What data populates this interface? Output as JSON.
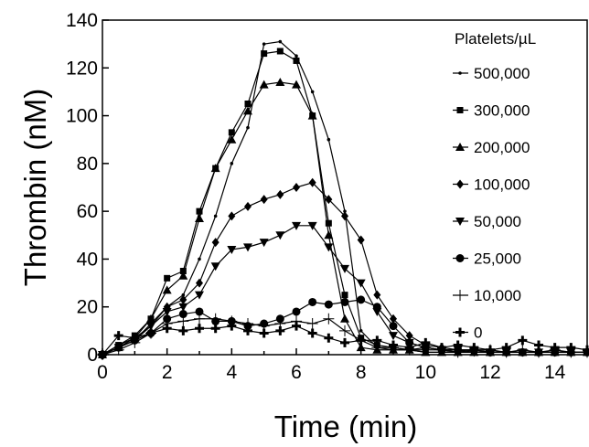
{
  "chart_data": {
    "type": "line",
    "title": "",
    "xlabel": "Time (min)",
    "ylabel": "Thrombin (nM)",
    "xlim": [
      0,
      15
    ],
    "ylim": [
      0,
      140
    ],
    "xticks": [
      "0",
      "2",
      "4",
      "6",
      "8",
      "10",
      "12",
      "14"
    ],
    "yticks": [
      "0",
      "20",
      "40",
      "60",
      "80",
      "100",
      "120",
      "140"
    ],
    "grid": false,
    "legend_title": "Platelets/µL",
    "legend_position": "top-right",
    "series": [
      {
        "name": "500,000",
        "marker": "dot",
        "x": [
          0,
          0.5,
          1,
          1.5,
          2,
          2.5,
          3,
          3.5,
          4,
          4.5,
          5,
          5.5,
          6,
          6.5,
          7,
          7.5,
          8,
          8.5,
          9,
          9.5,
          10,
          10.5,
          11,
          11.5,
          12,
          12.5,
          13,
          13.5,
          14,
          14.5,
          15
        ],
        "y": [
          0,
          4,
          7,
          12,
          20,
          25,
          40,
          58,
          80,
          95,
          130,
          131,
          125,
          110,
          90,
          60,
          10,
          3,
          2,
          2,
          1,
          1,
          1,
          1,
          1,
          1,
          1,
          1,
          1,
          1,
          1
        ]
      },
      {
        "name": "300,000",
        "marker": "square",
        "x": [
          0,
          0.5,
          1,
          1.5,
          2,
          2.5,
          3,
          3.5,
          4,
          4.5,
          5,
          5.5,
          6,
          6.5,
          7,
          7.5,
          8,
          8.5,
          9,
          9.5,
          10,
          10.5,
          11,
          11.5,
          12,
          12.5,
          13,
          13.5,
          14,
          14.5,
          15
        ],
        "y": [
          0,
          4,
          8,
          15,
          32,
          35,
          60,
          78,
          93,
          105,
          126,
          127,
          123,
          100,
          55,
          25,
          7,
          4,
          3,
          2,
          2,
          2,
          1,
          1,
          1,
          1,
          1,
          1,
          1,
          1,
          1
        ]
      },
      {
        "name": "200,000",
        "marker": "triangle-up",
        "x": [
          0,
          0.5,
          1,
          1.5,
          2,
          2.5,
          3,
          3.5,
          4,
          4.5,
          5,
          5.5,
          6,
          6.5,
          7,
          7.5,
          8,
          8.5,
          9,
          9.5,
          10,
          10.5,
          11,
          11.5,
          12,
          12.5,
          13,
          13.5,
          14,
          14.5,
          15
        ],
        "y": [
          0,
          3,
          7,
          15,
          27,
          33,
          57,
          78,
          90,
          102,
          113,
          114,
          113,
          100,
          50,
          15,
          3,
          2,
          2,
          2,
          1,
          1,
          1,
          1,
          1,
          1,
          1,
          1,
          1,
          1,
          1
        ]
      },
      {
        "name": "100,000",
        "marker": "diamond",
        "x": [
          0,
          0.5,
          1,
          1.5,
          2,
          2.5,
          3,
          3.5,
          4,
          4.5,
          5,
          5.5,
          6,
          6.5,
          7,
          7.5,
          8,
          8.5,
          9,
          9.5,
          10,
          10.5,
          11,
          11.5,
          12,
          12.5,
          13,
          13.5,
          14,
          14.5,
          15
        ],
        "y": [
          0,
          3,
          6,
          13,
          20,
          23,
          30,
          47,
          58,
          62,
          65,
          67,
          70,
          72,
          65,
          58,
          48,
          25,
          15,
          8,
          4,
          3,
          2,
          2,
          1,
          1,
          1,
          1,
          1,
          1,
          1
        ]
      },
      {
        "name": "50,000",
        "marker": "triangle-down",
        "x": [
          0,
          0.5,
          1,
          1.5,
          2,
          2.5,
          3,
          3.5,
          4,
          4.5,
          5,
          5.5,
          6,
          6.5,
          7,
          7.5,
          8,
          8.5,
          9,
          9.5,
          10,
          10.5,
          11,
          11.5,
          12,
          12.5,
          13,
          13.5,
          14,
          14.5,
          15
        ],
        "y": [
          0,
          3,
          6,
          12,
          18,
          20,
          25,
          37,
          44,
          45,
          47,
          50,
          54,
          54,
          45,
          36,
          30,
          18,
          8,
          5,
          3,
          2,
          2,
          1,
          1,
          1,
          1,
          1,
          1,
          1,
          1
        ]
      },
      {
        "name": "25,000",
        "marker": "circle",
        "x": [
          0,
          0.5,
          1,
          1.5,
          2,
          2.5,
          3,
          3.5,
          4,
          4.5,
          5,
          5.5,
          6,
          6.5,
          7,
          7.5,
          8,
          8.5,
          9,
          9.5,
          10,
          10.5,
          11,
          11.5,
          12,
          12.5,
          13,
          13.5,
          14,
          14.5,
          15
        ],
        "y": [
          0,
          3,
          6,
          9,
          15,
          17,
          18,
          14,
          14,
          12,
          13,
          15,
          18,
          22,
          21,
          22,
          23,
          20,
          12,
          5,
          3,
          2,
          2,
          2,
          1,
          1,
          1,
          1,
          1,
          1,
          1
        ]
      },
      {
        "name": "10,000",
        "marker": "plus-thin",
        "x": [
          0,
          0.5,
          1,
          1.5,
          2,
          2.5,
          3,
          3.5,
          4,
          4.5,
          5,
          5.5,
          6,
          6.5,
          7,
          7.5,
          8,
          8.5,
          9,
          9.5,
          10,
          10.5,
          11,
          11.5,
          12,
          12.5,
          13,
          13.5,
          14,
          14.5,
          15
        ],
        "y": [
          0,
          2,
          5,
          9,
          13,
          14,
          15,
          15,
          14,
          13,
          12,
          13,
          14,
          13,
          15,
          10,
          6,
          3,
          3,
          2,
          3,
          2,
          1,
          2,
          2,
          1,
          2,
          1,
          2,
          1,
          1
        ]
      },
      {
        "name": "0",
        "marker": "plus-bold",
        "x": [
          0,
          0.5,
          1,
          1.5,
          2,
          2.5,
          3,
          3.5,
          4,
          4.5,
          5,
          5.5,
          6,
          6.5,
          7,
          7.5,
          8,
          8.5,
          9,
          9.5,
          10,
          10.5,
          11,
          11.5,
          12,
          12.5,
          13,
          13.5,
          14,
          14.5,
          15
        ],
        "y": [
          0,
          8,
          7,
          9,
          11,
          10,
          11,
          11,
          12,
          10,
          9,
          10,
          12,
          9,
          7,
          5,
          6,
          6,
          4,
          3,
          5,
          3,
          4,
          3,
          2,
          3,
          6,
          4,
          3,
          3,
          2
        ]
      }
    ]
  }
}
